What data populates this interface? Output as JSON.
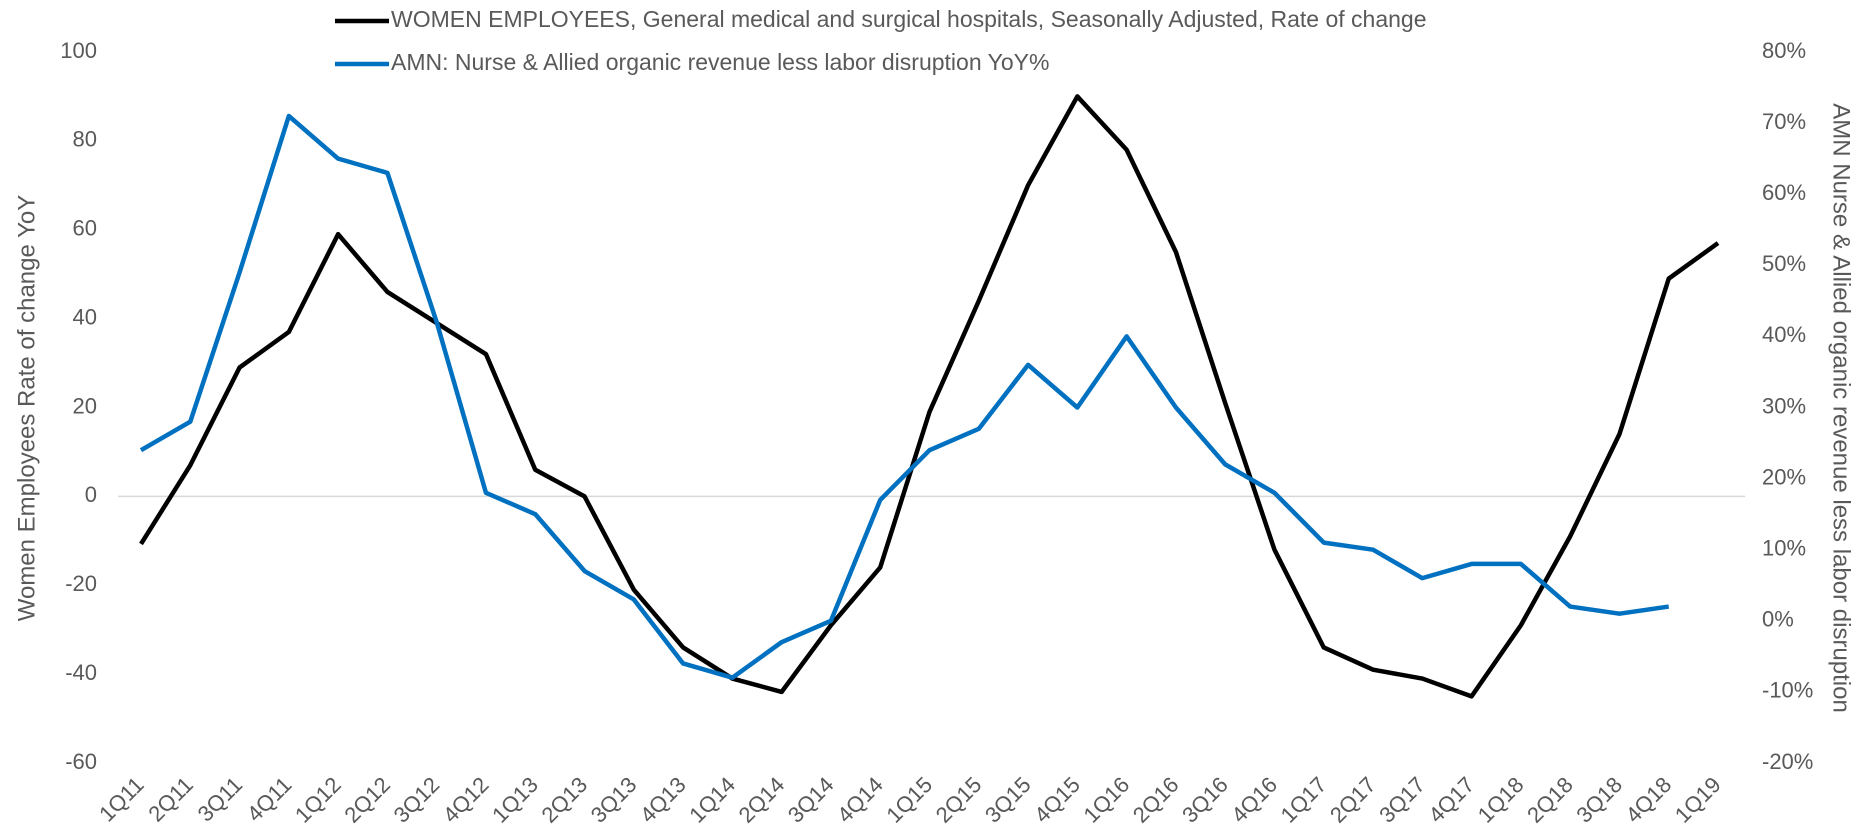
{
  "chart_data": {
    "type": "line",
    "categories": [
      "1Q11",
      "2Q11",
      "3Q11",
      "4Q11",
      "1Q12",
      "2Q12",
      "3Q12",
      "4Q12",
      "1Q13",
      "2Q13",
      "3Q13",
      "4Q13",
      "1Q14",
      "2Q14",
      "3Q14",
      "4Q14",
      "1Q15",
      "2Q15",
      "3Q15",
      "4Q15",
      "1Q16",
      "2Q16",
      "3Q16",
      "4Q16",
      "1Q17",
      "2Q17",
      "3Q17",
      "4Q17",
      "1Q18",
      "2Q18",
      "3Q18",
      "4Q18",
      "1Q19"
    ],
    "series": [
      {
        "name": "WOMEN EMPLOYEES, General medical and surgical hospitals, Seasonally Adjusted, Rate of change",
        "color": "#000000",
        "values": [
          -10.7,
          7,
          29,
          37,
          59,
          46,
          39,
          32,
          6,
          0,
          -21,
          -34,
          -41,
          -44,
          -29,
          -16,
          19,
          44,
          70,
          90,
          78,
          55,
          21,
          -12,
          -34,
          -39,
          -41,
          -45,
          -29,
          -9,
          14,
          49,
          57
        ]
      },
      {
        "name": "AMN: Nurse & Allied organic revenue less labor disruption YoY%",
        "color": "#0070c0",
        "axis": "y2",
        "values": [
          24,
          28,
          49,
          71,
          65,
          63,
          42,
          18,
          15,
          7,
          3,
          -6,
          -8,
          -3,
          0,
          17,
          24,
          27,
          36,
          30,
          40,
          30,
          22,
          18,
          11,
          10,
          6,
          8,
          8,
          2,
          1,
          2,
          null
        ]
      }
    ],
    "y_label": "Women Employees Rate of change YoY",
    "y2_label": "AMN Nurse & Allied organic revenue less labor disruption",
    "ylim": [
      -60,
      100
    ],
    "yticks": [
      -60,
      -40,
      -20,
      0,
      20,
      40,
      60,
      80,
      100
    ],
    "y2lim": [
      -20,
      80
    ],
    "y2ticks": [
      {
        "value": -20,
        "label": "-20%"
      },
      {
        "value": -10,
        "label": "-10%"
      },
      {
        "value": 0,
        "label": "0%"
      },
      {
        "value": 10,
        "label": "10%"
      },
      {
        "value": 20,
        "label": "20%"
      },
      {
        "value": 30,
        "label": "30%"
      },
      {
        "value": 40,
        "label": "40%"
      },
      {
        "value": 50,
        "label": "50%"
      },
      {
        "value": 60,
        "label": "60%"
      },
      {
        "value": 70,
        "label": "70%"
      },
      {
        "value": 80,
        "label": "80%"
      }
    ],
    "legend": "top",
    "grid": false
  }
}
